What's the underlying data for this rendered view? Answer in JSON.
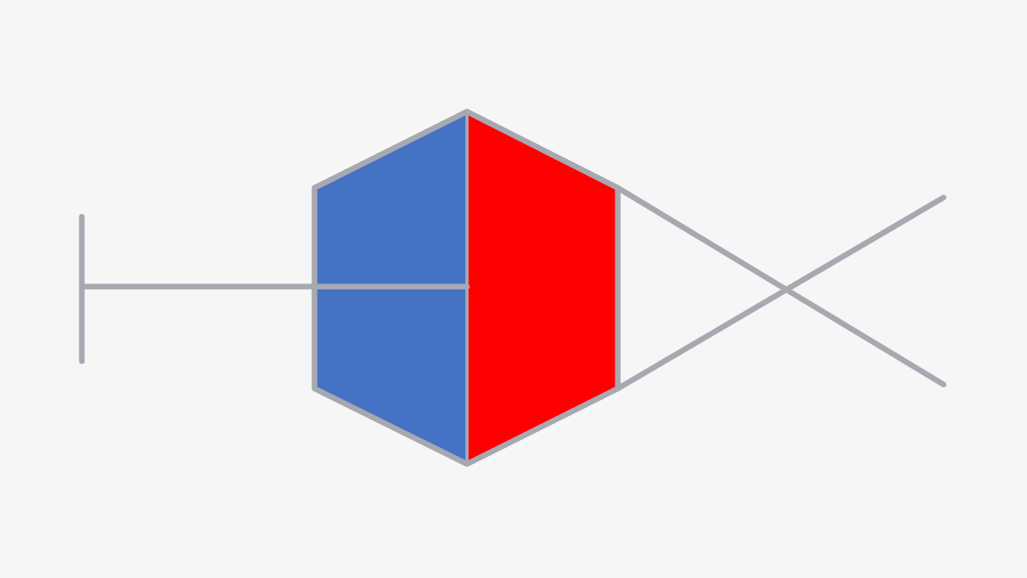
{
  "diagram": {
    "background_color": "#f6f6f7",
    "stroke_color": "#a8a8b0",
    "left_half_color": "#4472c4",
    "right_half_color": "#ff0000",
    "shapes": [
      {
        "name": "hexagon-left-half",
        "kind": "polygon",
        "fill": "blue"
      },
      {
        "name": "hexagon-right-half",
        "kind": "polygon",
        "fill": "red"
      },
      {
        "name": "hexagon-outline",
        "kind": "outline"
      },
      {
        "name": "center-divider-line",
        "kind": "line"
      },
      {
        "name": "horizontal-connector-line",
        "kind": "line"
      },
      {
        "name": "end-cap-line",
        "kind": "line"
      },
      {
        "name": "tail-upper-diagonal-line",
        "kind": "line"
      },
      {
        "name": "tail-lower-diagonal-line",
        "kind": "line"
      }
    ]
  }
}
